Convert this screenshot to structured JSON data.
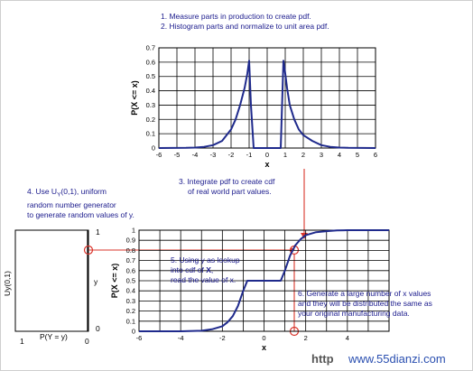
{
  "notes": {
    "step1": "1.  Measure parts in production to create pdf.",
    "step2": "2.  Histogram parts and normalize to unit area pdf.",
    "step3_line1": "3.  Integrate pdf to create cdf",
    "step3_line2": "of real world part values.",
    "step4_line1": "4.  Use U",
    "step4_sub": "Y",
    "step4_line1_rest": "(0,1), uniform",
    "step4_line2": "random number generator",
    "step4_line3": "to generate random values of y.",
    "step5_line1": "5.  Using y as lookup",
    "step5_line2": "into cdf of ",
    "step5_line2_bold": "X",
    "step5_line2_end": ",",
    "step5_line3": "read the value of x.",
    "step6_line1": "6.  Generate a large number of x values",
    "step6_line2": "and they will be distributed the same as",
    "step6_line3": "your original manufacturing data."
  },
  "left_box": {
    "ylabel": "Uy(0,1)",
    "y_marker": "y",
    "xlabel": "P(Y = y)",
    "tick_top": "1",
    "tick_bottom": "0",
    "x_left": "1",
    "x_right": "0"
  },
  "watermark": {
    "left": "http",
    "right": "www.55dianzi.com"
  },
  "colors": {
    "curve": "#1f2a8c",
    "annotation_line": "#d9342b",
    "note_text": "#1a1a8c",
    "grid": "#000000"
  },
  "chart_data": [
    {
      "type": "line",
      "title": "",
      "xlabel": "x",
      "ylabel": "P(X <= x)",
      "xlim": [
        -6,
        6
      ],
      "ylim": [
        0,
        0.7
      ],
      "x_ticks": [
        "-6",
        "-5",
        "-4",
        "-3",
        "-2",
        "-1",
        "0",
        "1",
        "2",
        "3",
        "4",
        "5",
        "6"
      ],
      "y_ticks": [
        "0",
        "0.1",
        "0.2",
        "0.3",
        "0.4",
        "0.5",
        "0.6",
        "0.7"
      ],
      "grid": true,
      "series": [
        {
          "x": [
            -6,
            -4.5,
            -4,
            -3.5,
            -3,
            -2.5,
            -2,
            -1.75,
            -1.5,
            -1.25,
            -1.1,
            -1,
            -0.9,
            -0.75,
            0.75,
            0.9,
            1,
            1.1,
            1.25,
            1.5,
            1.75,
            2,
            2.5,
            3,
            3.5,
            4,
            4.5,
            6
          ],
          "y": [
            0,
            0.001,
            0.003,
            0.008,
            0.02,
            0.05,
            0.13,
            0.2,
            0.3,
            0.42,
            0.52,
            0.61,
            0.3,
            0,
            0,
            0.61,
            0.52,
            0.42,
            0.3,
            0.2,
            0.13,
            0.09,
            0.05,
            0.02,
            0.008,
            0.003,
            0.001,
            0
          ]
        }
      ]
    },
    {
      "type": "line",
      "title": "",
      "xlabel": "x",
      "ylabel": "P(X <= x)",
      "xlim": [
        -6,
        6
      ],
      "ylim": [
        0,
        1
      ],
      "x_ticks": [
        "-6",
        "-4",
        "-2",
        "0",
        "2",
        "4"
      ],
      "y_ticks": [
        "0",
        "0.1",
        "0.2",
        "0.3",
        "0.4",
        "0.5",
        "0.6",
        "0.7",
        "0.8",
        "0.9",
        "1"
      ],
      "grid": true,
      "series": [
        {
          "x": [
            -6,
            -4,
            -3,
            -2.5,
            -2,
            -1.75,
            -1.5,
            -1.25,
            -1,
            -0.8,
            0.8,
            1,
            1.25,
            1.5,
            1.75,
            2,
            2.5,
            3,
            3.5,
            4,
            6
          ],
          "y": [
            0,
            0,
            0.005,
            0.02,
            0.05,
            0.09,
            0.15,
            0.25,
            0.4,
            0.5,
            0.5,
            0.6,
            0.75,
            0.85,
            0.91,
            0.95,
            0.98,
            0.99,
            0.997,
            1,
            1
          ]
        }
      ],
      "lookup": {
        "y": 0.8,
        "x": 1.3
      }
    }
  ]
}
